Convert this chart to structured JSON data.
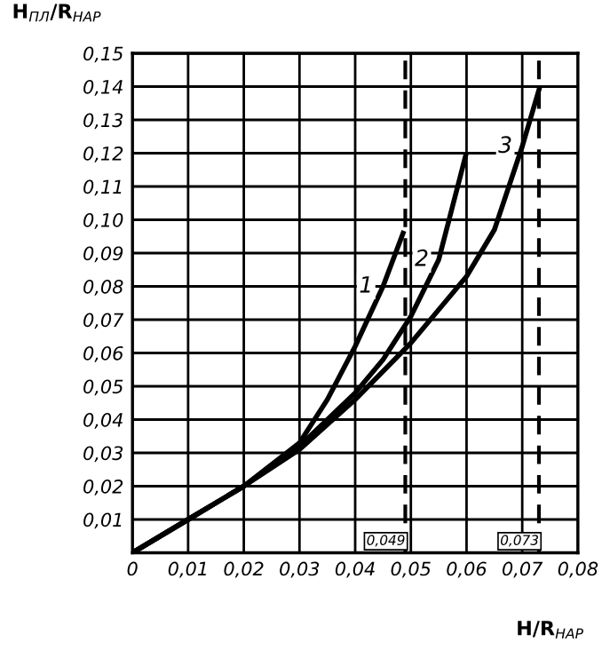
{
  "chart_data": {
    "type": "line",
    "xlabel": "H/R$_{НАР}$",
    "ylabel": "H$_{ПЛ}$/R$_{НАР}$",
    "series": [
      {
        "name": "1",
        "color": "#000000",
        "x": [
          0,
          0.01,
          0.02,
          0.03,
          0.035,
          0.04,
          0.045,
          0.0486
        ],
        "values": [
          0,
          0.01,
          0.02,
          0.033,
          0.046,
          0.062,
          0.08,
          0.096
        ]
      },
      {
        "name": "2",
        "color": "#000000",
        "x": [
          0,
          0.01,
          0.02,
          0.03,
          0.04,
          0.045,
          0.05,
          0.055,
          0.0598
        ],
        "values": [
          0,
          0.01,
          0.02,
          0.032,
          0.048,
          0.058,
          0.071,
          0.088,
          0.119
        ]
      },
      {
        "name": "3",
        "color": "#000000",
        "x": [
          0,
          0.01,
          0.02,
          0.03,
          0.04,
          0.05,
          0.06,
          0.065,
          0.07,
          0.073
        ],
        "values": [
          0,
          0.01,
          0.02,
          0.031,
          0.046,
          0.063,
          0.083,
          0.097,
          0.122,
          0.139
        ]
      }
    ],
    "xlim": [
      0,
      0.08
    ],
    "ylim": [
      0,
      0.15
    ],
    "xticks": [
      0,
      {
        "value": 0.01,
        "label": "0,01"
      },
      {
        "value": 0.02,
        "label": "0,02"
      },
      {
        "value": 0.03,
        "label": "0,03"
      },
      {
        "value": 0.04,
        "label": "0,04"
      },
      {
        "value": 0.05,
        "label": "0,05"
      },
      {
        "value": 0.06,
        "label": "0,06"
      },
      {
        "value": 0.07,
        "label": "0,07"
      },
      {
        "value": 0.08,
        "label": "0,08"
      }
    ],
    "yticks": [
      {
        "value": 0.01,
        "label": "0,01"
      },
      {
        "value": 0.02,
        "label": "0,02"
      },
      {
        "value": 0.03,
        "label": "0,03"
      },
      {
        "value": 0.04,
        "label": "0,04"
      },
      {
        "value": 0.05,
        "label": "0,05"
      },
      {
        "value": 0.06,
        "label": "0,06"
      },
      {
        "value": 0.07,
        "label": "0,07"
      },
      {
        "value": 0.08,
        "label": "0,08"
      },
      {
        "value": 0.09,
        "label": "0,09"
      },
      {
        "value": 0.1,
        "label": "0,10"
      },
      {
        "value": 0.11,
        "label": "0,11"
      },
      {
        "value": 0.12,
        "label": "0,12"
      },
      {
        "value": 0.13,
        "label": "0,13"
      },
      {
        "value": 0.14,
        "label": "0,14"
      },
      {
        "value": 0.15,
        "label": "0,15"
      }
    ],
    "ref_lines": [
      {
        "axis": "x",
        "value": 0.049,
        "label": "0,049",
        "line_style": "dashed"
      },
      {
        "axis": "x",
        "value": 0.073,
        "label": "0,073",
        "line_style": "dashed"
      }
    ],
    "grid": true,
    "marker": "none",
    "line_style": "solid"
  }
}
